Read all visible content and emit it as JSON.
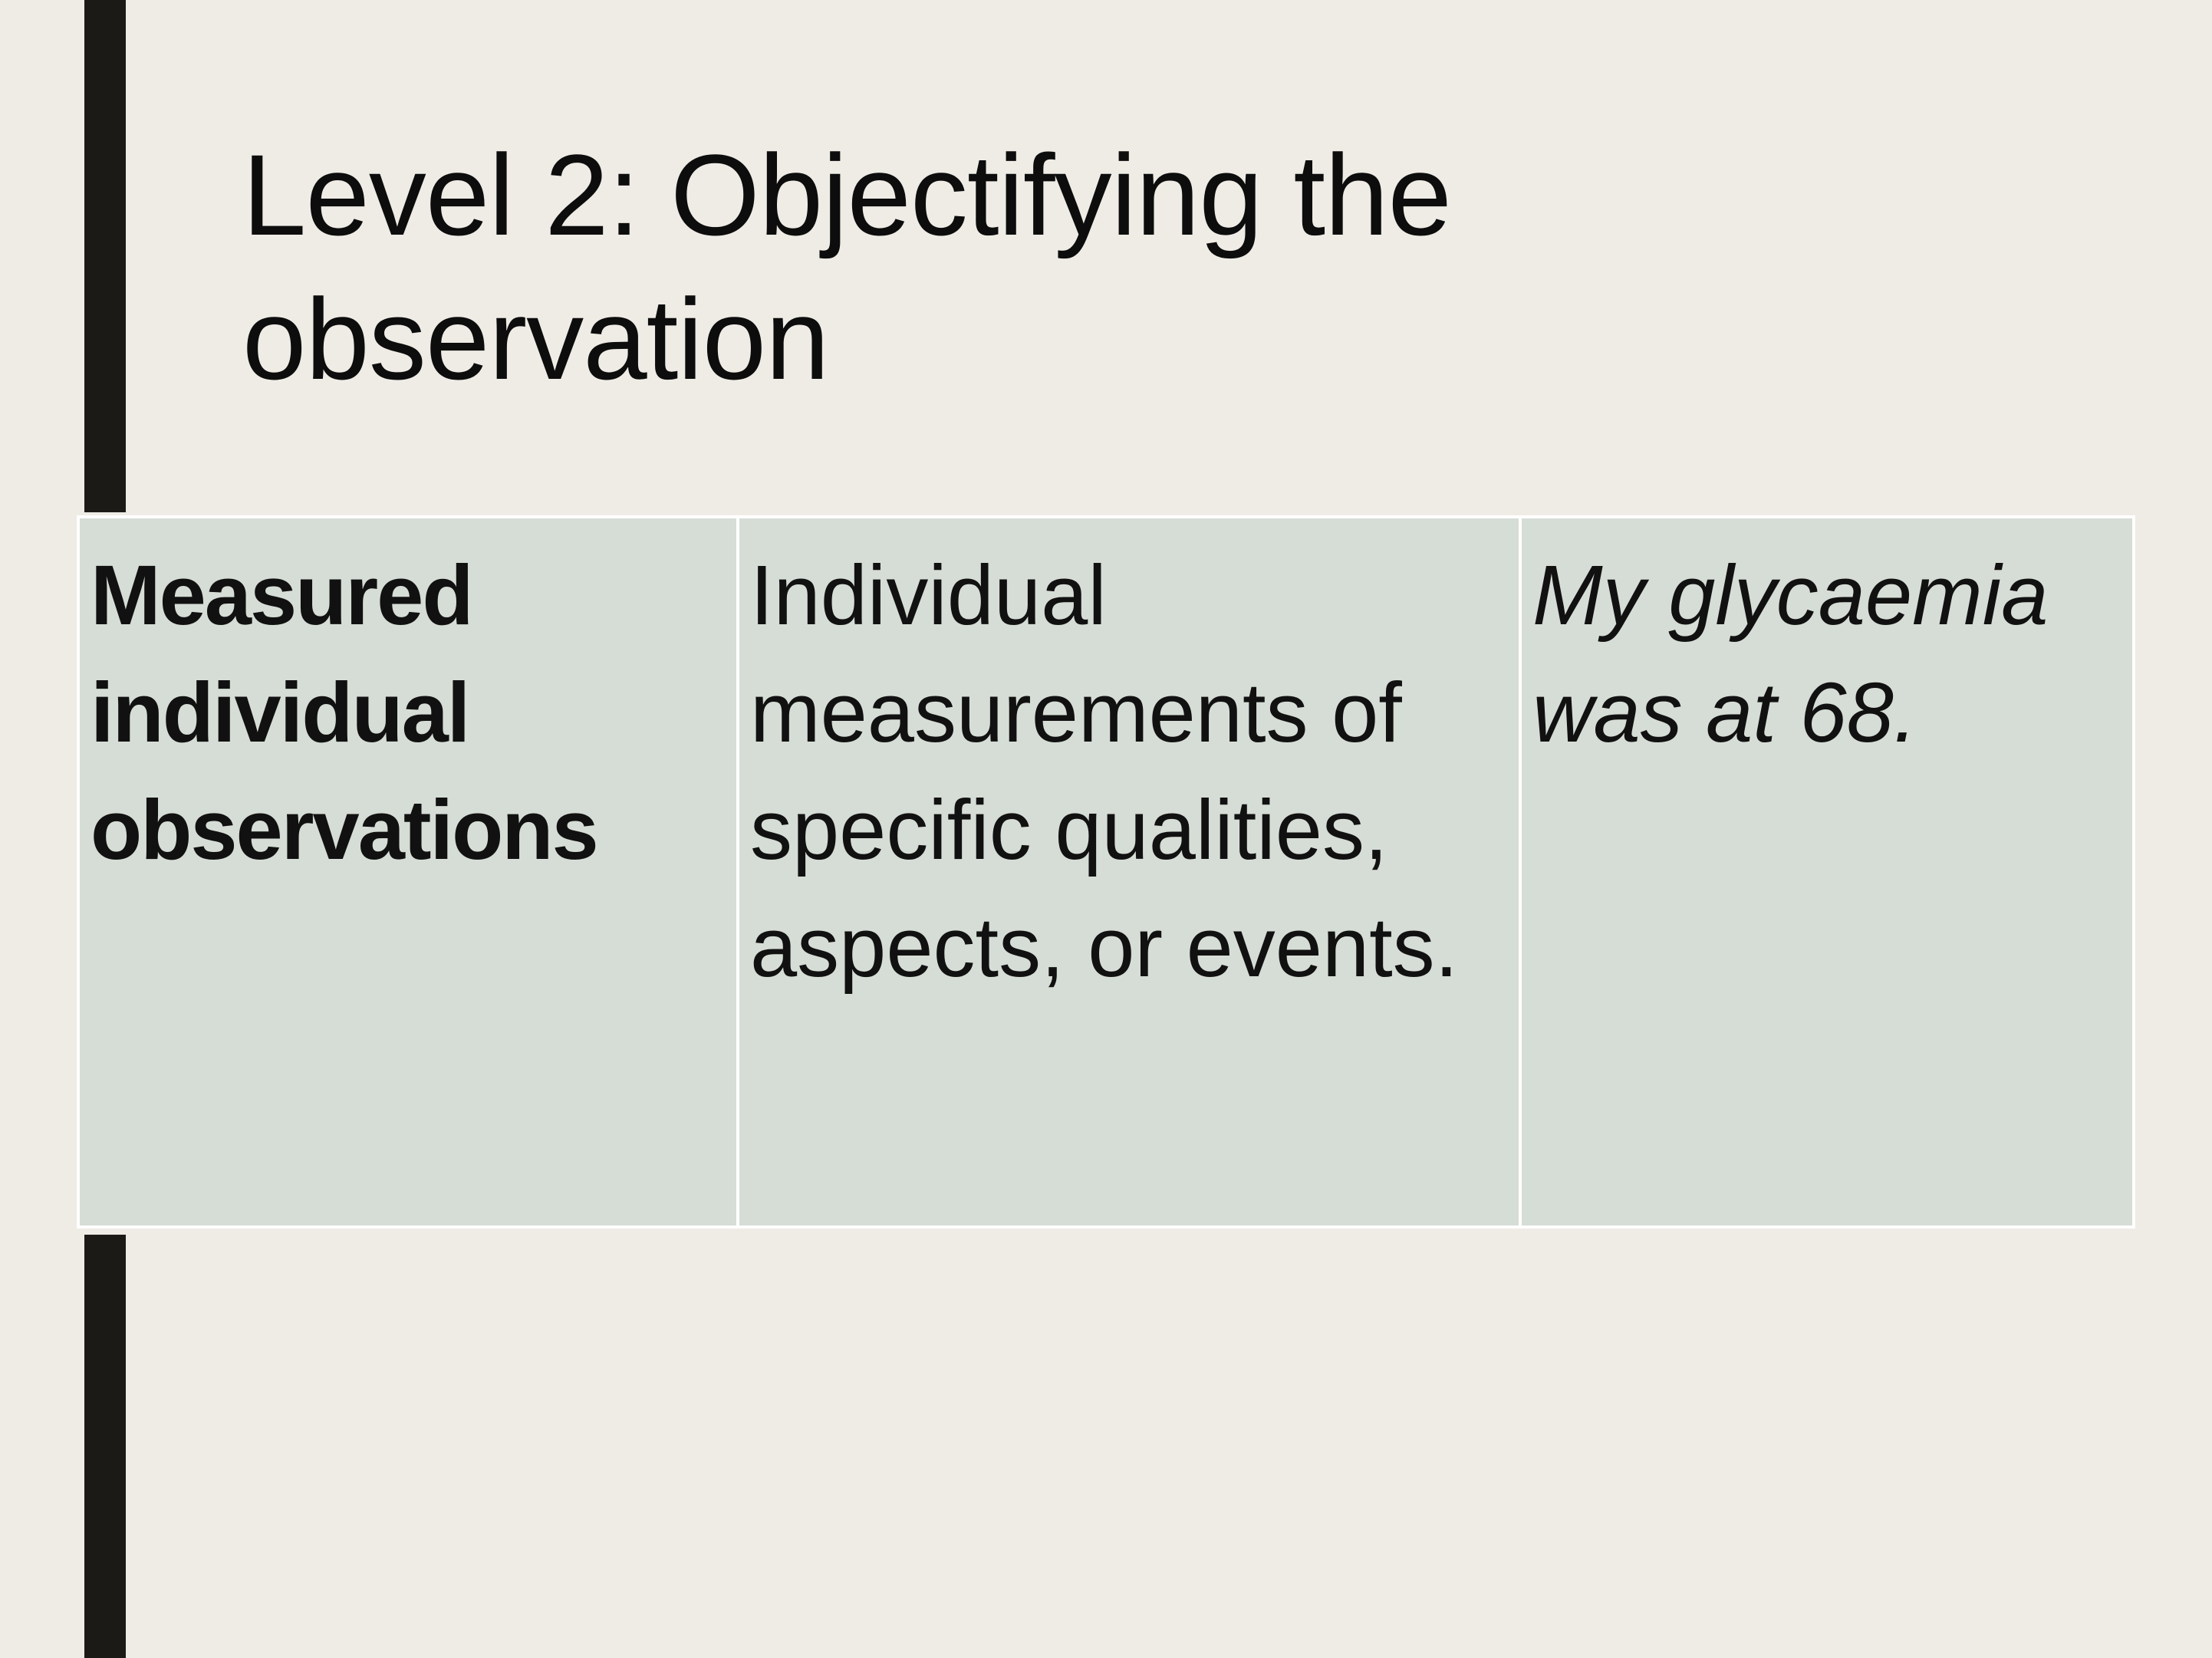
{
  "slide": {
    "title": "Level 2: Objectifying the observation",
    "table": {
      "rows": [
        {
          "term": "Measured individual observations",
          "definition": "Individual measurements of specific qualities, aspects, or events.",
          "example": "My glycaemia was at 68."
        }
      ]
    }
  },
  "colors": {
    "background": "#efece6",
    "accent_bar": "#1b1a16",
    "table_fill": "#d6ddd6",
    "table_border": "#ffffff"
  }
}
